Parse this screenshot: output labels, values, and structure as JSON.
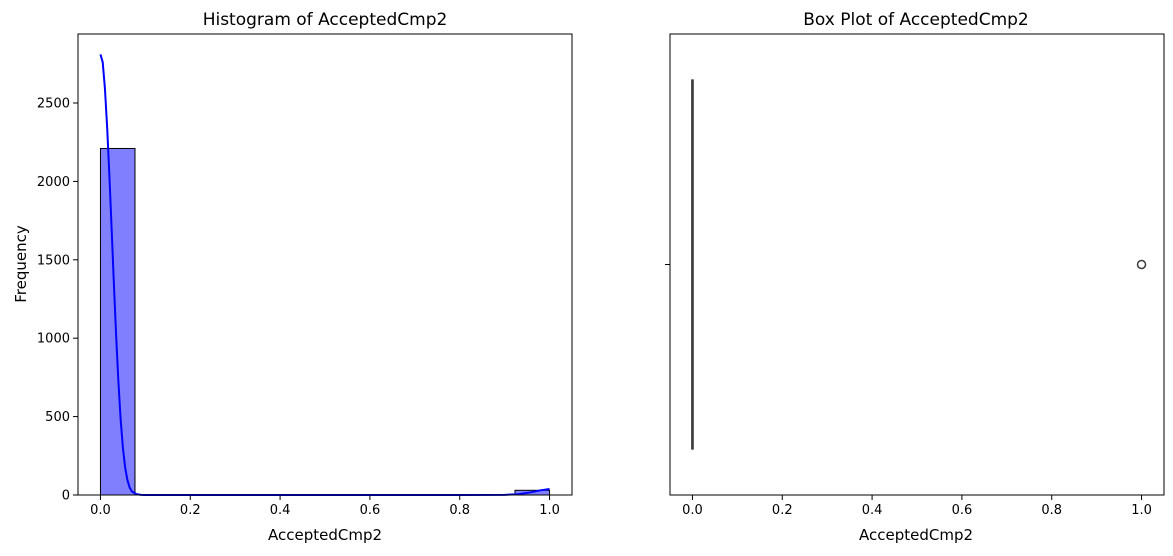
{
  "chart_data": [
    {
      "type": "bar",
      "title": "Histogram of AcceptedCmp2",
      "xlabel": "AcceptedCmp2",
      "ylabel": "Frequency",
      "xlim": [
        -0.05,
        1.05
      ],
      "ylim": [
        0,
        2940
      ],
      "xticks": [
        "0.0",
        "0.2",
        "0.4",
        "0.6",
        "0.8",
        "1.0"
      ],
      "yticks": [
        "0",
        "500",
        "1000",
        "1500",
        "2000",
        "2500"
      ],
      "bins": [
        {
          "x0": 0.0,
          "x1": 0.0769,
          "count": 2210
        },
        {
          "x0": 0.0769,
          "x1": 0.1538,
          "count": 0
        },
        {
          "x0": 0.1538,
          "x1": 0.2308,
          "count": 0
        },
        {
          "x0": 0.2308,
          "x1": 0.3077,
          "count": 0
        },
        {
          "x0": 0.3077,
          "x1": 0.3846,
          "count": 0
        },
        {
          "x0": 0.3846,
          "x1": 0.4615,
          "count": 0
        },
        {
          "x0": 0.4615,
          "x1": 0.5385,
          "count": 0
        },
        {
          "x0": 0.5385,
          "x1": 0.6154,
          "count": 0
        },
        {
          "x0": 0.6154,
          "x1": 0.6923,
          "count": 0
        },
        {
          "x0": 0.6923,
          "x1": 0.7692,
          "count": 0
        },
        {
          "x0": 0.7692,
          "x1": 0.8462,
          "count": 0
        },
        {
          "x0": 0.8462,
          "x1": 0.9231,
          "count": 0
        },
        {
          "x0": 0.9231,
          "x1": 1.0,
          "count": 30
        }
      ],
      "kde": {
        "x": [
          0.0,
          0.005,
          0.01,
          0.015,
          0.02,
          0.025,
          0.03,
          0.035,
          0.04,
          0.045,
          0.05,
          0.055,
          0.06,
          0.065,
          0.07,
          0.08,
          0.09,
          0.1,
          0.2,
          0.4,
          0.6,
          0.8,
          0.9,
          0.93,
          0.96,
          0.98,
          1.0
        ],
        "y": [
          2810,
          2760,
          2590,
          2340,
          2030,
          1690,
          1340,
          1010,
          720,
          480,
          300,
          175,
          95,
          48,
          22,
          6,
          1,
          0,
          0,
          0,
          0,
          0,
          1,
          5,
          18,
          30,
          38
        ]
      },
      "colors": {
        "bar_fill": "#8080ff",
        "bar_edge": "#000000",
        "kde_line": "#0000ff"
      }
    },
    {
      "type": "box",
      "title": "Box Plot of AcceptedCmp2",
      "xlabel": "AcceptedCmp2",
      "xlim": [
        -0.05,
        1.05
      ],
      "xticks": [
        "0.0",
        "0.2",
        "0.4",
        "0.6",
        "0.8",
        "1.0"
      ],
      "q1": 0,
      "median": 0,
      "q3": 0,
      "whisker_low": 0,
      "whisker_high": 0,
      "outliers": [
        1.0
      ],
      "colors": {
        "box_line": "#3d3d3d",
        "flier_edge": "#3d3d3d"
      }
    }
  ]
}
